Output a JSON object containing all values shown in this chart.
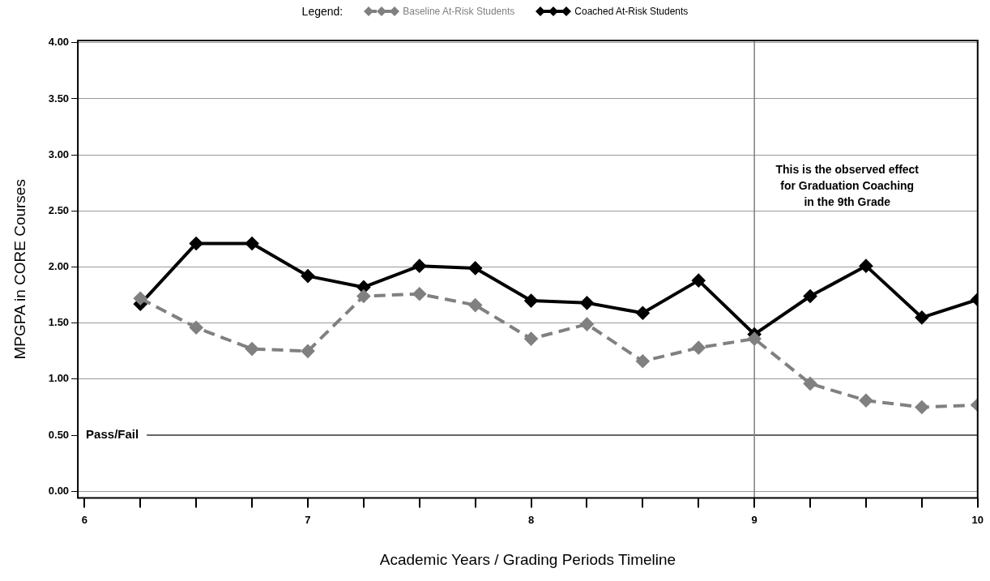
{
  "chart_data": {
    "type": "line",
    "xlabel": "Academic Years / Grading Periods Timeline",
    "ylabel": "MPGPA in CORE Courses",
    "legend_title": "Legend:",
    "legend": "top",
    "grid": "y",
    "marker": "diamond",
    "xlim": [
      5.97,
      10
    ],
    "xticks": [
      6,
      {
        "value": 6.25,
        "label": null
      },
      {
        "value": 6.5,
        "label": null
      },
      {
        "value": 6.75,
        "label": null
      },
      7,
      {
        "value": 7.25,
        "label": null
      },
      {
        "value": 7.5,
        "label": null
      },
      {
        "value": 7.75,
        "label": null
      },
      8,
      {
        "value": 8.25,
        "label": null
      },
      {
        "value": 8.5,
        "label": null
      },
      {
        "value": 8.75,
        "label": null
      },
      9,
      {
        "value": 9.25,
        "label": null
      },
      {
        "value": 9.5,
        "label": null
      },
      {
        "value": 9.75,
        "label": null
      },
      10
    ],
    "ylim": [
      -0.06,
      4.02
    ],
    "yticks": [
      {
        "value": 0,
        "label": "0.00"
      },
      {
        "value": 0.5,
        "label": "0.50"
      },
      {
        "value": 1,
        "label": "1.00"
      },
      {
        "value": 1.5,
        "label": "1.50"
      },
      {
        "value": 2,
        "label": "2.00"
      },
      {
        "value": 2.5,
        "label": "2.50"
      },
      {
        "value": 3,
        "label": "3.00"
      },
      {
        "value": 3.5,
        "label": "3.50"
      },
      {
        "value": 4,
        "label": "4.00"
      }
    ],
    "x": [
      6.25,
      6.5,
      6.75,
      7,
      7.25,
      7.5,
      7.75,
      8,
      8.25,
      8.5,
      8.75,
      9,
      9.25,
      9.5,
      9.75,
      10
    ],
    "series": [
      {
        "name": "Baseline At-Risk Students",
        "color": "#808080",
        "line_style": "dashed",
        "values": [
          1.72,
          1.46,
          1.27,
          1.25,
          1.74,
          1.76,
          1.66,
          1.36,
          1.49,
          1.16,
          1.28,
          1.36,
          0.96,
          0.81,
          0.75,
          0.77
        ]
      },
      {
        "name": "Coached At-Risk Students",
        "color": "#000000",
        "line_style": "solid",
        "values": [
          1.67,
          2.21,
          2.21,
          1.92,
          1.82,
          2.01,
          1.99,
          1.7,
          1.68,
          1.59,
          1.88,
          1.4,
          1.74,
          2.01,
          1.55,
          1.71
        ]
      }
    ],
    "ref_lines": [
      {
        "axis": "y",
        "value": 0.5,
        "label": "Pass/Fail",
        "color": "#666666"
      },
      {
        "axis": "x",
        "value": 9,
        "color": "#808080"
      }
    ],
    "annotations": [
      "This is the observed effect\nfor Graduation Coaching\nin the 9th Grade"
    ]
  }
}
